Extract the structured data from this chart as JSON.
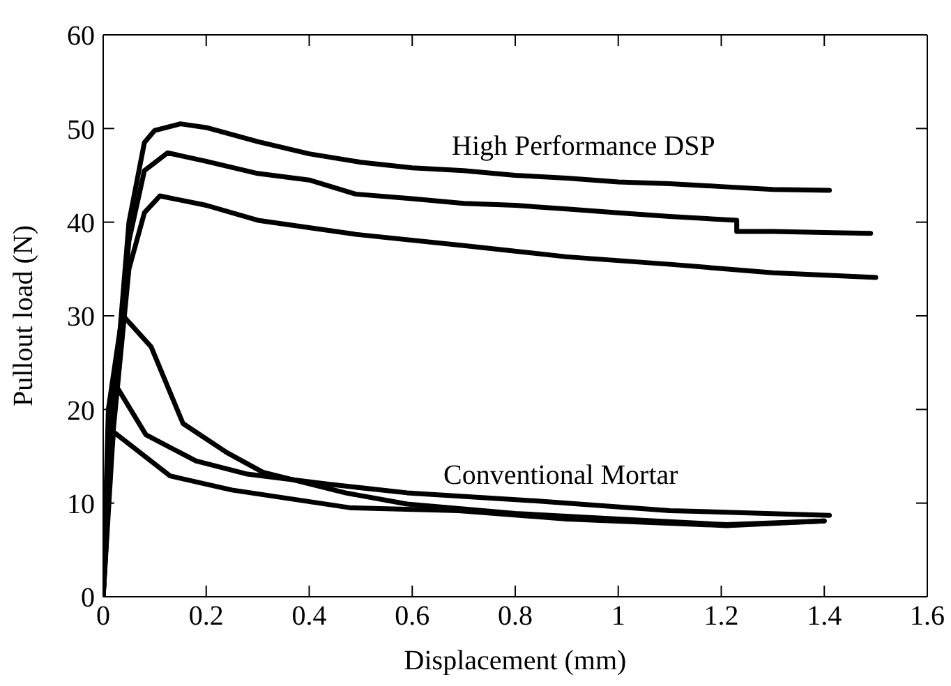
{
  "chart_data": {
    "type": "line",
    "xlabel": "Displacement (mm)",
    "ylabel": "Pullout load (N)",
    "xlim": [
      0,
      1.6
    ],
    "xticks": [
      0,
      0.2,
      0.4,
      0.6,
      0.8,
      1,
      1.2,
      1.4,
      1.6
    ],
    "ylim": [
      0,
      60
    ],
    "yticks": [
      0,
      10,
      20,
      30,
      40,
      50,
      60
    ],
    "line_style": "solid",
    "annotations": [
      "High Performance DSP",
      "Conventional Mortar"
    ],
    "series": [
      {
        "color": "#000000",
        "x": [
          0,
          0.02,
          0.05,
          0.08,
          0.1,
          0.15,
          0.2,
          0.3,
          0.4,
          0.5,
          0.6,
          0.7,
          0.8,
          0.9,
          1.0,
          1.1,
          1.2,
          1.3,
          1.41
        ],
        "values": [
          0,
          20,
          40,
          48.5,
          49.8,
          50.5,
          50.1,
          48.6,
          47.3,
          46.4,
          45.8,
          45.5,
          45,
          44.7,
          44.3,
          44.1,
          43.8,
          43.5,
          43.4
        ]
      },
      {
        "color": "#000000",
        "x": [
          0,
          0.02,
          0.05,
          0.08,
          0.125,
          0.2,
          0.3,
          0.4,
          0.49,
          0.6,
          0.7,
          0.8,
          0.9,
          1.0,
          1.1,
          1.23,
          1.23,
          1.3,
          1.4,
          1.49
        ],
        "values": [
          0,
          20,
          38,
          45.5,
          47.4,
          46.5,
          45.2,
          44.5,
          43,
          42.5,
          42,
          41.8,
          41.4,
          41,
          40.6,
          40.2,
          39,
          39,
          38.9,
          38.8
        ]
      },
      {
        "color": "#000000",
        "x": [
          0,
          0.02,
          0.05,
          0.08,
          0.11,
          0.2,
          0.3,
          0.49,
          0.7,
          0.9,
          1.1,
          1.3,
          1.5
        ],
        "values": [
          0,
          18,
          35,
          41,
          42.8,
          41.8,
          40.2,
          38.7,
          37.5,
          36.3,
          35.5,
          34.6,
          34.1
        ]
      },
      {
        "color": "#000000",
        "x": [
          0,
          0.01,
          0.037,
          0.093,
          0.155,
          0.24,
          0.31,
          0.47,
          0.59,
          0.8,
          1.0,
          1.21,
          1.4
        ],
        "values": [
          0,
          20,
          30.1,
          26.7,
          18.5,
          15.4,
          13.3,
          11.1,
          9.9,
          8.9,
          8.3,
          7.7,
          8.1
        ]
      },
      {
        "color": "#000000",
        "x": [
          0,
          0.01,
          0.02,
          0.083,
          0.18,
          0.28,
          0.44,
          0.59,
          0.85,
          1.1,
          1.41
        ],
        "values": [
          0,
          15,
          23,
          17.3,
          14.5,
          13.1,
          12,
          11.1,
          10.2,
          9.2,
          8.7
        ]
      },
      {
        "color": "#000000",
        "x": [
          0,
          0.01,
          0.02,
          0.13,
          0.25,
          0.48,
          0.69,
          0.9,
          1.21,
          1.4
        ],
        "values": [
          0,
          12,
          17.6,
          12.9,
          11.4,
          9.5,
          9.2,
          8.3,
          7.6,
          8.1
        ]
      }
    ]
  }
}
